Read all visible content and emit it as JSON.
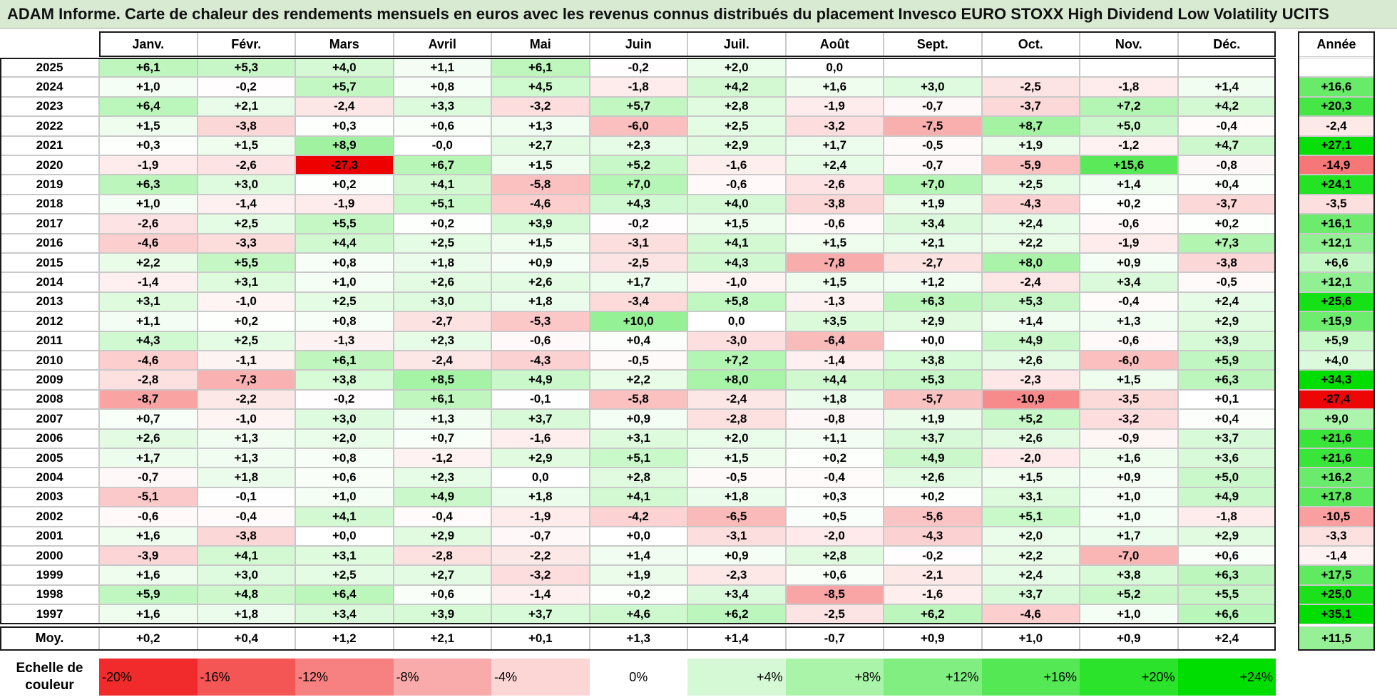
{
  "chart_data": {
    "type": "heatmap",
    "title": "ADAM Informe. Carte de chaleur des rendements mensuels en euros avec les revenus connus distribués du placement Invesco EURO STOXX High Dividend Low Volatility UCITS",
    "columns": [
      "Janv.",
      "Févr.",
      "Mars",
      "Avril",
      "Mai",
      "Juin",
      "Juil.",
      "Août",
      "Sept.",
      "Oct.",
      "Nov.",
      "Déc."
    ],
    "year_column_label": "Année",
    "rows": [
      {
        "label": "2025",
        "values": [
          "+6,1",
          "+5,3",
          "+4,0",
          "+1,1",
          "+6,1",
          "-0,2",
          "+2,0",
          "0,0",
          "",
          "",
          "",
          ""
        ],
        "year": ""
      },
      {
        "label": "2024",
        "values": [
          "+1,0",
          "-0,2",
          "+5,7",
          "+0,8",
          "+4,5",
          "-1,8",
          "+4,2",
          "+1,6",
          "+3,0",
          "-2,5",
          "-1,8",
          "+1,4"
        ],
        "year": "+16,6"
      },
      {
        "label": "2023",
        "values": [
          "+6,4",
          "+2,1",
          "-2,4",
          "+3,3",
          "-3,2",
          "+5,7",
          "+2,8",
          "-1,9",
          "-0,7",
          "-3,7",
          "+7,2",
          "+4,2"
        ],
        "year": "+20,3"
      },
      {
        "label": "2022",
        "values": [
          "+1,5",
          "-3,8",
          "+0,3",
          "+0,6",
          "+1,3",
          "-6,0",
          "+2,5",
          "-3,2",
          "-7,5",
          "+8,7",
          "+5,0",
          "-0,4"
        ],
        "year": "-2,4"
      },
      {
        "label": "2021",
        "values": [
          "+0,3",
          "+1,5",
          "+8,9",
          "-0,0",
          "+2,7",
          "+2,3",
          "+2,9",
          "+1,7",
          "-0,5",
          "+1,9",
          "-1,2",
          "+4,7"
        ],
        "year": "+27,1"
      },
      {
        "label": "2020",
        "values": [
          "-1,9",
          "-2,6",
          "-27,3",
          "+6,7",
          "+1,5",
          "+5,2",
          "-1,6",
          "+2,4",
          "-0,7",
          "-5,9",
          "+15,6",
          "-0,8"
        ],
        "year": "-14,9"
      },
      {
        "label": "2019",
        "values": [
          "+6,3",
          "+3,0",
          "+0,2",
          "+4,1",
          "-5,8",
          "+7,0",
          "-0,6",
          "-2,6",
          "+7,0",
          "+2,5",
          "+1,4",
          "+0,4"
        ],
        "year": "+24,1"
      },
      {
        "label": "2018",
        "values": [
          "+1,0",
          "-1,4",
          "-1,9",
          "+5,1",
          "-4,6",
          "+4,3",
          "+4,0",
          "-3,8",
          "+1,9",
          "-4,3",
          "+0,2",
          "-3,7"
        ],
        "year": "-3,5"
      },
      {
        "label": "2017",
        "values": [
          "-2,6",
          "+2,5",
          "+5,5",
          "+0,2",
          "+3,9",
          "-0,2",
          "+1,5",
          "-0,6",
          "+3,4",
          "+2,4",
          "-0,6",
          "+0,2"
        ],
        "year": "+16,1"
      },
      {
        "label": "2016",
        "values": [
          "-4,6",
          "-3,3",
          "+4,4",
          "+2,5",
          "+1,5",
          "-3,1",
          "+4,1",
          "+1,5",
          "+2,1",
          "+2,2",
          "-1,9",
          "+7,3"
        ],
        "year": "+12,1"
      },
      {
        "label": "2015",
        "values": [
          "+2,2",
          "+5,5",
          "+0,8",
          "+1,8",
          "+0,9",
          "-2,5",
          "+4,3",
          "-7,8",
          "-2,7",
          "+8,0",
          "+0,9",
          "-3,8"
        ],
        "year": "+6,6"
      },
      {
        "label": "2014",
        "values": [
          "-1,4",
          "+3,1",
          "+1,0",
          "+2,6",
          "+2,6",
          "+1,7",
          "-1,0",
          "+1,5",
          "+1,2",
          "-2,4",
          "+3,4",
          "-0,5"
        ],
        "year": "+12,1"
      },
      {
        "label": "2013",
        "values": [
          "+3,1",
          "-1,0",
          "+2,5",
          "+3,0",
          "+1,8",
          "-3,4",
          "+5,8",
          "-1,3",
          "+6,3",
          "+5,3",
          "-0,4",
          "+2,4"
        ],
        "year": "+25,6"
      },
      {
        "label": "2012",
        "values": [
          "+1,1",
          "+0,2",
          "+0,8",
          "-2,7",
          "-5,3",
          "+10,0",
          "0,0",
          "+3,5",
          "+2,9",
          "+1,4",
          "+1,3",
          "+2,9"
        ],
        "year": "+15,9"
      },
      {
        "label": "2011",
        "values": [
          "+4,3",
          "+2,5",
          "-1,3",
          "+2,3",
          "-0,6",
          "+0,4",
          "-3,0",
          "-6,4",
          "+0,0",
          "+4,9",
          "-0,6",
          "+3,9"
        ],
        "year": "+5,9"
      },
      {
        "label": "2010",
        "values": [
          "-4,6",
          "-1,1",
          "+6,1",
          "-2,4",
          "-4,3",
          "-0,5",
          "+7,2",
          "-1,4",
          "+3,8",
          "+2,6",
          "-6,0",
          "+5,9"
        ],
        "year": "+4,0"
      },
      {
        "label": "2009",
        "values": [
          "-2,8",
          "-7,3",
          "+3,8",
          "+8,5",
          "+4,9",
          "+2,2",
          "+8,0",
          "+4,4",
          "+5,3",
          "-2,3",
          "+1,5",
          "+6,3"
        ],
        "year": "+34,3"
      },
      {
        "label": "2008",
        "values": [
          "-8,7",
          "-2,2",
          "-0,2",
          "+6,1",
          "-0,1",
          "-5,8",
          "-2,4",
          "+1,8",
          "-5,7",
          "-10,9",
          "-3,5",
          "+0,1"
        ],
        "year": "-27,4"
      },
      {
        "label": "2007",
        "values": [
          "+0,7",
          "-1,0",
          "+3,0",
          "+1,3",
          "+3,7",
          "+0,9",
          "-2,8",
          "-0,8",
          "+1,9",
          "+5,2",
          "-3,2",
          "+0,4"
        ],
        "year": "+9,0"
      },
      {
        "label": "2006",
        "values": [
          "+2,6",
          "+1,3",
          "+2,0",
          "+0,7",
          "-1,6",
          "+3,1",
          "+2,0",
          "+1,1",
          "+3,7",
          "+2,6",
          "-0,9",
          "+3,7"
        ],
        "year": "+21,6"
      },
      {
        "label": "2005",
        "values": [
          "+1,7",
          "+1,3",
          "+0,8",
          "-1,2",
          "+2,9",
          "+5,1",
          "+1,5",
          "+0,2",
          "+4,9",
          "-2,0",
          "+1,6",
          "+3,6"
        ],
        "year": "+21,6"
      },
      {
        "label": "2004",
        "values": [
          "-0,7",
          "+1,8",
          "+0,6",
          "+2,3",
          "0,0",
          "+2,8",
          "-0,5",
          "-0,4",
          "+2,6",
          "+1,5",
          "+0,9",
          "+5,0"
        ],
        "year": "+16,2"
      },
      {
        "label": "2003",
        "values": [
          "-5,1",
          "-0,1",
          "+1,0",
          "+4,9",
          "+1,8",
          "+4,1",
          "+1,8",
          "+0,3",
          "+0,2",
          "+3,1",
          "+1,0",
          "+4,9"
        ],
        "year": "+17,8"
      },
      {
        "label": "2002",
        "values": [
          "-0,6",
          "-0,4",
          "+4,1",
          "-0,4",
          "-1,9",
          "-4,2",
          "-6,5",
          "+0,5",
          "-5,6",
          "+5,1",
          "+1,0",
          "-1,8"
        ],
        "year": "-10,5"
      },
      {
        "label": "2001",
        "values": [
          "+1,6",
          "-3,8",
          "+0,0",
          "+2,9",
          "-0,7",
          "+0,0",
          "-3,1",
          "-2,0",
          "-4,3",
          "+2,0",
          "+1,7",
          "+2,9"
        ],
        "year": "-3,3"
      },
      {
        "label": "2000",
        "values": [
          "-3,9",
          "+4,1",
          "+3,1",
          "-2,8",
          "-2,2",
          "+1,4",
          "+0,9",
          "+2,8",
          "-0,2",
          "+2,2",
          "-7,0",
          "+0,6"
        ],
        "year": "-1,4"
      },
      {
        "label": "1999",
        "values": [
          "+1,6",
          "+3,0",
          "+2,5",
          "+2,7",
          "-3,2",
          "+1,9",
          "-2,3",
          "+0,6",
          "-2,1",
          "+2,4",
          "+3,8",
          "+6,3"
        ],
        "year": "+17,5"
      },
      {
        "label": "1998",
        "values": [
          "+5,9",
          "+4,8",
          "+6,4",
          "+0,6",
          "-1,4",
          "+0,2",
          "+3,4",
          "-8,5",
          "-1,6",
          "+3,7",
          "+5,2",
          "+5,5"
        ],
        "year": "+25,0"
      },
      {
        "label": "1997",
        "values": [
          "+1,6",
          "+1,8",
          "+3,4",
          "+3,9",
          "+3,7",
          "+4,6",
          "+6,2",
          "-2,5",
          "+6,2",
          "-4,6",
          "+1,0",
          "+6,6"
        ],
        "year": "+35,1"
      }
    ],
    "average": {
      "label": "Moy.",
      "values": [
        "+0,2",
        "+0,4",
        "+1,2",
        "+2,1",
        "+0,1",
        "+1,3",
        "+1,4",
        "-0,7",
        "+0,9",
        "+1,0",
        "+0,9",
        "+2,4"
      ],
      "year": "+11,5"
    },
    "color_scale": {
      "label": "Echelle de couleur",
      "stops": [
        "-20%",
        "-16%",
        "-12%",
        "-8%",
        "-4%",
        "0%",
        "+4%",
        "+8%",
        "+12%",
        "+16%",
        "+20%",
        "+24%"
      ],
      "negative_color": "#ee0000",
      "positive_color": "#00dd00",
      "neutral_color": "#ffffff"
    }
  }
}
